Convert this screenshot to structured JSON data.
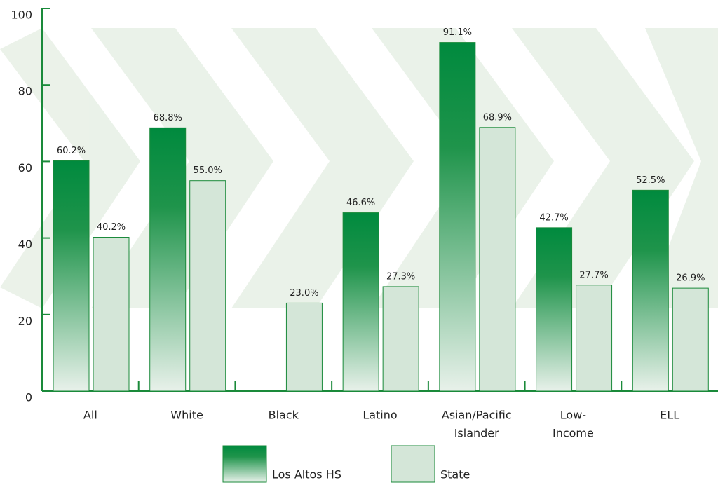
{
  "chart_data": {
    "type": "bar",
    "categories": [
      [
        "All"
      ],
      [
        "White"
      ],
      [
        "Black"
      ],
      [
        "Latino"
      ],
      [
        "Asian/Pacific",
        "Islander"
      ],
      [
        "Low-",
        "Income"
      ],
      [
        "ELL"
      ]
    ],
    "series": [
      {
        "name": "Los Altos HS",
        "color": "#008a3e",
        "values": [
          60.2,
          68.8,
          null,
          46.6,
          91.1,
          42.7,
          52.5
        ],
        "value_labels": [
          "60.2%",
          "68.8%",
          null,
          "46.6%",
          "91.1%",
          "42.7%",
          "52.5%"
        ]
      },
      {
        "name": "State",
        "color": "#d4e6d8",
        "values": [
          40.2,
          55.0,
          23.0,
          27.3,
          68.9,
          27.7,
          26.9
        ],
        "value_labels": [
          "40.2%",
          "55.0%",
          "23.0%",
          "27.3%",
          "68.9%",
          "27.7%",
          "26.9%"
        ]
      }
    ],
    "ylim": [
      0,
      100
    ],
    "yticks": [
      0,
      20,
      40,
      60,
      80,
      100
    ],
    "legend": "bottom"
  }
}
